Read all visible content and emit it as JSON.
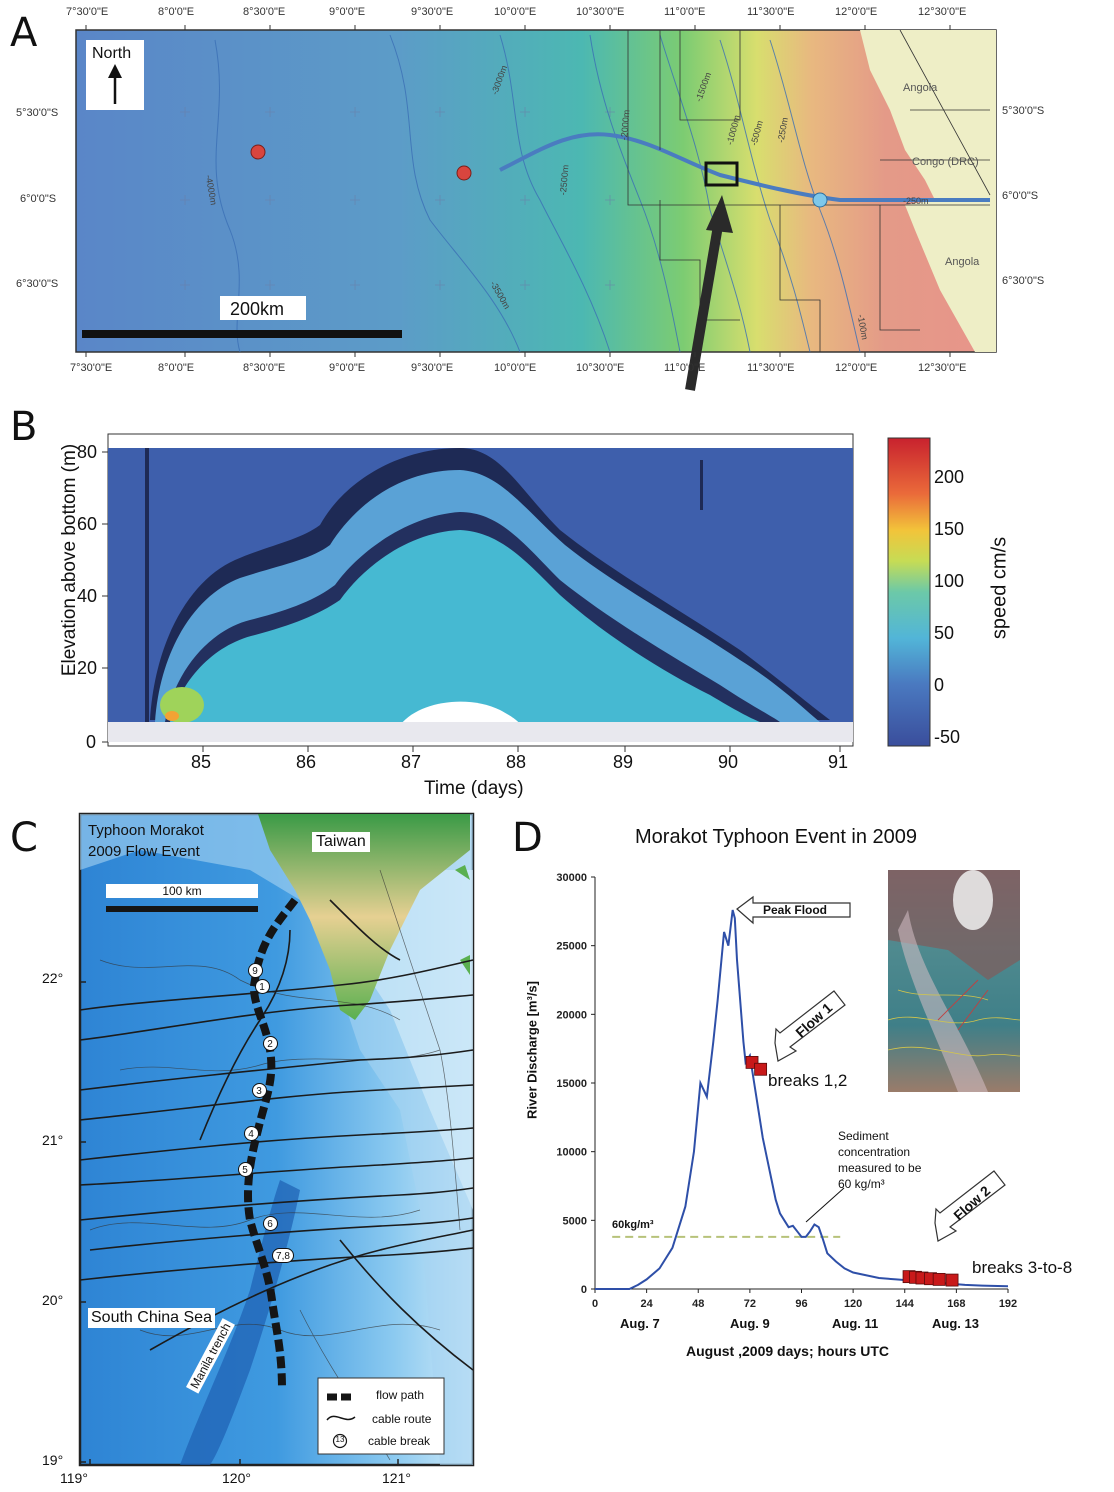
{
  "panels": [
    "A",
    "B",
    "C",
    "D"
  ],
  "panel_a": {
    "top_lon": [
      "7°30'0\"E",
      "8°0'0\"E",
      "8°30'0\"E",
      "9°0'0\"E",
      "9°30'0\"E",
      "10°0'0\"E",
      "10°30'0\"E",
      "11°0'0\"E",
      "11°30'0\"E",
      "12°0'0\"E",
      "12°30'0\"E"
    ],
    "bottom_lon": [
      "7°30'0\"E",
      "8°0'0\"E",
      "8°30'0\"E",
      "9°0'0\"E",
      "9°30'0\"E",
      "10°0'0\"E",
      "10°30'0\"E",
      "11°0'0\"E",
      "11°30'0\"E",
      "12°0'0\"E",
      "12°30'0\"E"
    ],
    "left_lat": [
      "5°30'0\"S",
      "6°0'0\"S",
      "6°30'0\"S"
    ],
    "right_lat": [
      "5°30'0\"S",
      "6°0'0\"S",
      "6°30'0\"S"
    ],
    "north": "North",
    "scale": "200km",
    "places": [
      "Angola",
      "Congo (DRC)",
      "Angola"
    ],
    "contours": [
      "-4000m",
      "-3000m",
      "-2500m",
      "-2000m",
      "-3500m",
      "-1500m",
      "-1000m",
      "-500m",
      "-250m",
      "-250m",
      "-100m"
    ]
  },
  "panel_b": {
    "ylabel": "Elevation above bottom (m)",
    "xlabel": "Time (days)",
    "yticks": [
      "0",
      "20",
      "40",
      "60",
      "80"
    ],
    "xticks": [
      "85",
      "86",
      "87",
      "88",
      "89",
      "90",
      "91"
    ],
    "colorbar_ticks": [
      "200",
      "150",
      "100",
      "50",
      "0",
      "-50"
    ],
    "colorbar_label": "speed cm/s"
  },
  "panel_c": {
    "title_line1": "Typhoon Morakot",
    "title_line2": "2009 Flow Event",
    "taiwan": "Taiwan",
    "scale": "100 km",
    "sea": "South China Sea",
    "trench": "Manila trench",
    "lat_ticks": [
      "22°",
      "21°",
      "20°",
      "19°"
    ],
    "lon_ticks": [
      "119°",
      "120°",
      "121°"
    ],
    "breaks": [
      "9",
      "1",
      "2",
      "3",
      "4",
      "5",
      "6",
      "7,8"
    ],
    "legend": [
      "flow path",
      "cable route",
      "cable break"
    ],
    "legend_symbol": "13"
  },
  "panel_d": {
    "title": "Morakot Typhoon Event in 2009",
    "ylabel": "River Discharge  [m³/s]",
    "xlabel": "August ,2009 days; hours UTC",
    "peak_label": "Peak Flood",
    "flow1": "Flow 1",
    "flow2": "Flow 2",
    "breaks12": "breaks 1,2",
    "breaks38": "breaks 3-to-8",
    "threshold_label": "60kg/m³",
    "note_line1": "Sediment",
    "note_line2": "concentration",
    "note_line3": "measured to be",
    "note_line4": "60 kg/m³",
    "day_labels": [
      "Aug. 7",
      "Aug. 9",
      "Aug. 11",
      "Aug. 13"
    ]
  },
  "chart_data": {
    "type": "line",
    "title": "Morakot Typhoon Event in 2009",
    "xlabel": "August ,2009 days; hours UTC",
    "ylabel": "River Discharge  [m³/s]",
    "xlim": [
      0,
      192
    ],
    "ylim": [
      0,
      30000
    ],
    "xticks": [
      0,
      24,
      48,
      72,
      96,
      120,
      144,
      168,
      192
    ],
    "yticks": [
      0,
      5000,
      10000,
      15000,
      20000,
      25000,
      30000
    ],
    "x": [
      0,
      16,
      20,
      24,
      30,
      36,
      42,
      46,
      49,
      52,
      55,
      57,
      60,
      62,
      64,
      65,
      66,
      67,
      68,
      69,
      70,
      72,
      74,
      76,
      78,
      80,
      82,
      84,
      86,
      88,
      90,
      92,
      94,
      96,
      98,
      100,
      102,
      104,
      106,
      108,
      112,
      116,
      120,
      126,
      132,
      140,
      148,
      156,
      164,
      172,
      180,
      192
    ],
    "y": [
      0,
      0,
      300,
      700,
      1500,
      3000,
      6000,
      10000,
      15000,
      14000,
      18000,
      21000,
      26000,
      25000,
      27600,
      27000,
      24000,
      22000,
      20000,
      18000,
      16500,
      17000,
      15000,
      13000,
      11000,
      9500,
      8000,
      6500,
      5500,
      5000,
      4500,
      4600,
      4200,
      3800,
      3800,
      4200,
      4700,
      4500,
      3600,
      2600,
      2000,
      1500,
      1200,
      1000,
      800,
      700,
      600,
      500,
      400,
      300,
      250,
      200
    ],
    "threshold": 3800,
    "break_markers": [
      {
        "x": 73,
        "y": 16500
      },
      {
        "x": 77,
        "y": 16000
      },
      {
        "x": 146,
        "y": 900
      },
      {
        "x": 149,
        "y": 850
      },
      {
        "x": 152,
        "y": 800
      },
      {
        "x": 156,
        "y": 750
      },
      {
        "x": 160,
        "y": 700
      },
      {
        "x": 166,
        "y": 650
      }
    ]
  },
  "colors": {
    "discharge_line": "#2e4fa8",
    "break_marker": "#c8191a",
    "threshold": "#b7c27a"
  }
}
